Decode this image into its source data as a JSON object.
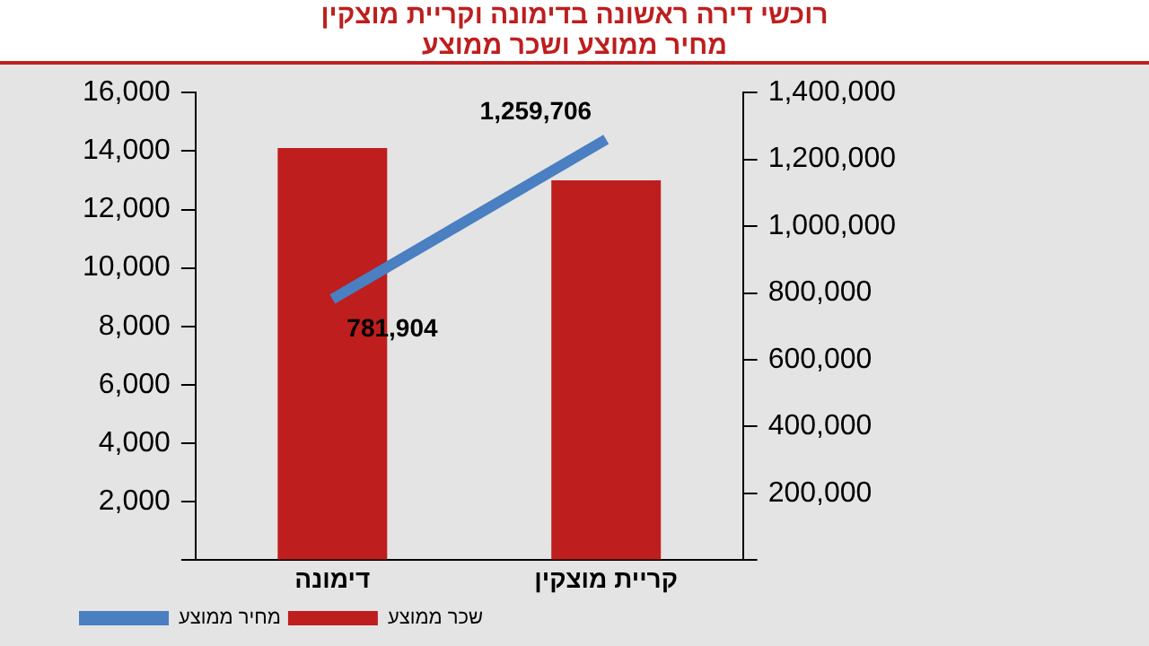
{
  "chart_data": {
    "type": "bar",
    "title": "רוכשי דירה ראשונה בדימונה וקריית מוצקין",
    "subtitle": "מחיר ממוצע ושכר ממוצע",
    "categories": [
      "דימונה",
      "קריית מוצקין"
    ],
    "series": [
      {
        "name": "מחיר ממוצע",
        "type": "line",
        "axis": "y2",
        "color": "#4a7fc1",
        "values": [
          781904,
          1259706
        ],
        "value_labels": [
          "781,904",
          "1,259,706"
        ]
      },
      {
        "name": "שכר ממוצע",
        "color": "#be1e1e",
        "values": [
          14100,
          13000
        ]
      }
    ],
    "ylim": [
      0,
      16000
    ],
    "yticks": [
      {
        "value": 0,
        "label": null
      },
      {
        "value": 2000,
        "label": "2,000"
      },
      {
        "value": 4000,
        "label": "4,000"
      },
      {
        "value": 6000,
        "label": "6,000"
      },
      {
        "value": 8000,
        "label": "8,000"
      },
      {
        "value": 10000,
        "label": "10,000"
      },
      {
        "value": 12000,
        "label": "12,000"
      },
      {
        "value": 14000,
        "label": "14,000"
      },
      {
        "value": 16000,
        "label": "16,000"
      }
    ],
    "y2lim": [
      0,
      1400000
    ],
    "y2ticks": [
      {
        "value": 0,
        "label": null
      },
      {
        "value": 200000,
        "label": "200,000"
      },
      {
        "value": 400000,
        "label": "400,000"
      },
      {
        "value": 600000,
        "label": "600,000"
      },
      {
        "value": 800000,
        "label": "800,000"
      },
      {
        "value": 1000000,
        "label": "1,000,000"
      },
      {
        "value": 1200000,
        "label": "1,200,000"
      },
      {
        "value": 1400000,
        "label": "1,400,000"
      }
    ],
    "grid": false,
    "legend": "bottom left",
    "marker": "none"
  }
}
